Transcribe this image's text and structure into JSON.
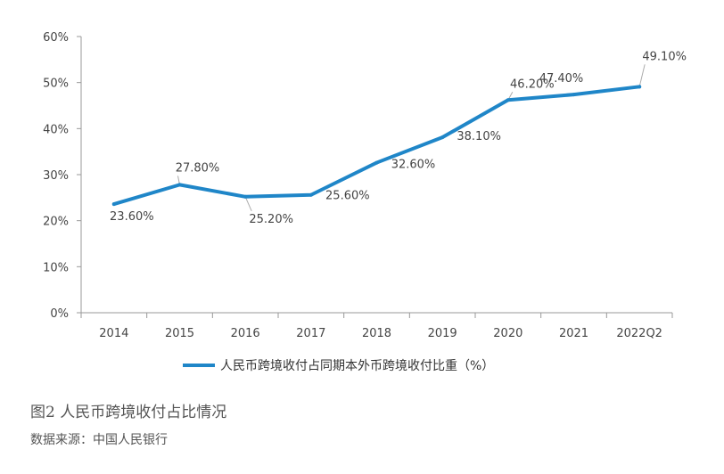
{
  "chart_data": {
    "type": "line",
    "categories": [
      "2014",
      "2015",
      "2016",
      "2017",
      "2018",
      "2019",
      "2020",
      "2021",
      "2022Q2"
    ],
    "series": [
      {
        "name": "人民币跨境收付占同期本外币跨境收付比重（%）",
        "values": [
          23.6,
          27.8,
          25.2,
          25.6,
          32.6,
          38.1,
          46.2,
          47.4,
          49.1
        ],
        "labels": [
          "23.60%",
          "27.80%",
          "25.20%",
          "25.60%",
          "32.60%",
          "38.10%",
          "46.20%",
          "47.40%",
          "49.10%"
        ],
        "color": "#1f86c8"
      }
    ],
    "yticks": [
      "0%",
      "10%",
      "20%",
      "30%",
      "40%",
      "50%",
      "60%"
    ],
    "ylim": [
      0,
      60
    ],
    "legend_position": "bottom",
    "grid": false
  },
  "caption": "图2 人民币跨境收付占比情况",
  "source": "数据来源：中国人民银行"
}
